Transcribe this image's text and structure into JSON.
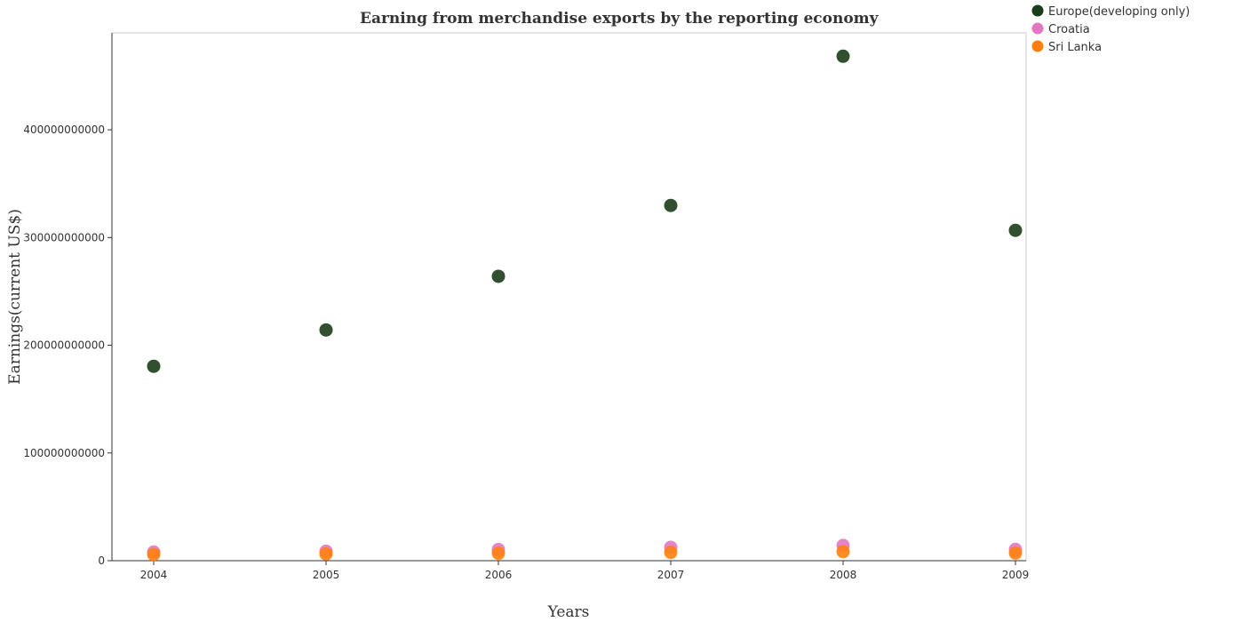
{
  "chart_data": {
    "type": "scatter",
    "title": "Earning from merchandise exports by the reporting economy",
    "xlabel": "Years",
    "ylabel": "Earnings(current US$)",
    "x": [
      "2004",
      "2005",
      "2006",
      "2007",
      "2008",
      "2009"
    ],
    "ylim": [
      0,
      490000000000
    ],
    "yticks": [
      0,
      100000000000,
      200000000000,
      300000000000,
      400000000000
    ],
    "ytick_labels": [
      "0",
      "100000000000",
      "200000000000",
      "300000000000",
      "400000000000"
    ],
    "grid": false,
    "legend_position": "top-right",
    "series": [
      {
        "name": "Europe(developing only)",
        "color": "#1a3d1a",
        "values": [
          180500000000,
          214200000000,
          264000000000,
          329800000000,
          468300000000,
          306700000000
        ]
      },
      {
        "name": "Croatia",
        "color": "#e377c2",
        "values": [
          8000000000,
          8800000000,
          10400000000,
          12400000000,
          14100000000,
          10500000000
        ]
      },
      {
        "name": "Sri Lanka",
        "color": "#ff7f0e",
        "values": [
          5800000000,
          6300000000,
          6900000000,
          7700000000,
          8400000000,
          7100000000
        ]
      }
    ]
  }
}
